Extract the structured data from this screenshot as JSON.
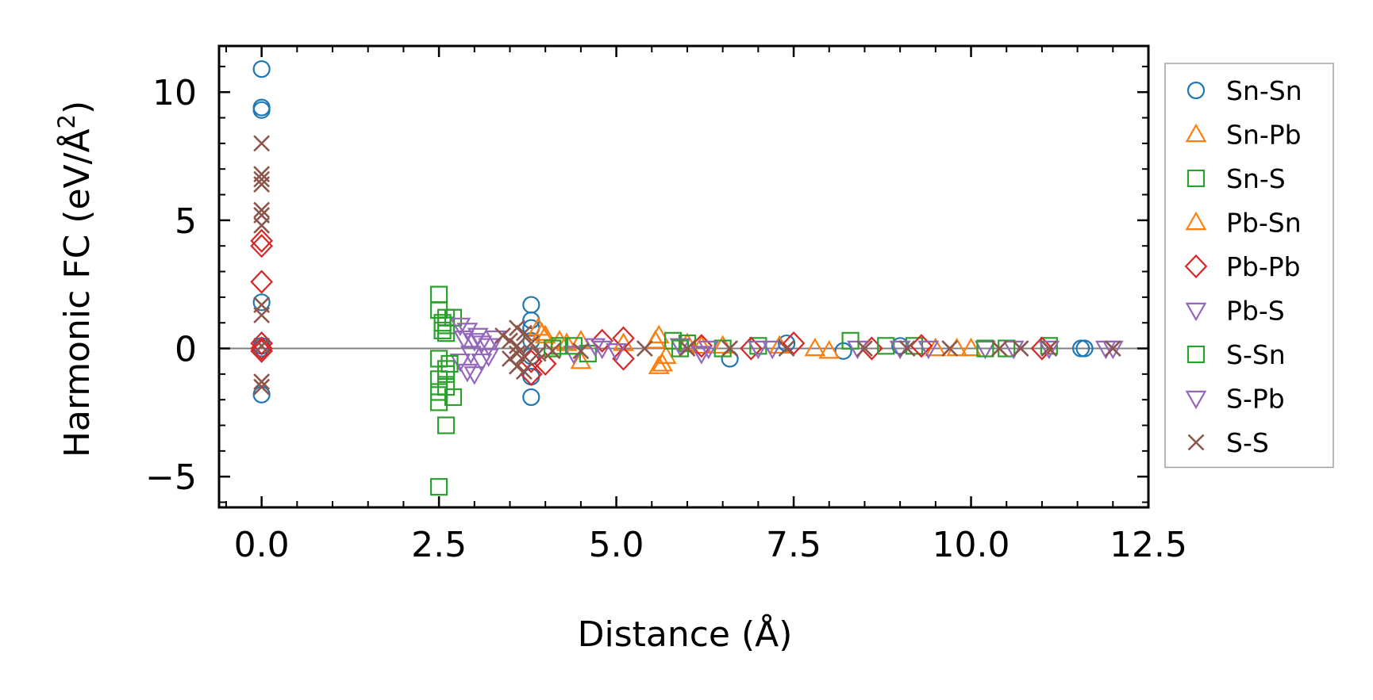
{
  "chart_data": {
    "type": "scatter",
    "xlabel": "Distance (Å)",
    "ylabel": "Harmonic FC (eV/Å²)",
    "ylabel_main": "Harmonic FC (eV/Å",
    "ylabel_sup": "2",
    "ylabel_close": ")",
    "xlim": [
      -0.6,
      12.5
    ],
    "ylim": [
      -6.2,
      11.8
    ],
    "xticks": [
      0.0,
      2.5,
      5.0,
      7.5,
      10.0,
      12.5
    ],
    "xtick_labels": [
      "0.0",
      "2.5",
      "5.0",
      "7.5",
      "10.0",
      "12.5"
    ],
    "yticks": [
      -5,
      0,
      5,
      10
    ],
    "ytick_labels": [
      "−5",
      "0",
      "5",
      "10"
    ],
    "zero_line": true,
    "grid": false,
    "legend_position": "right-outside",
    "series": [
      {
        "name": "Sn-Sn",
        "marker": "circle",
        "color": "#1f77b4",
        "points": [
          [
            0,
            10.9
          ],
          [
            0,
            9.4
          ],
          [
            0,
            9.3
          ],
          [
            0,
            1.8
          ],
          [
            0,
            0.1
          ],
          [
            0,
            -1.8
          ],
          [
            0,
            0
          ],
          [
            3.8,
            1.7
          ],
          [
            3.8,
            1.1
          ],
          [
            3.8,
            0.8
          ],
          [
            3.8,
            0.3
          ],
          [
            3.8,
            -0.3
          ],
          [
            3.8,
            -1.1
          ],
          [
            3.8,
            -1.9
          ],
          [
            6.6,
            -0.4
          ],
          [
            7.4,
            0.2
          ],
          [
            8.2,
            -0.1
          ],
          [
            9.0,
            0.1
          ],
          [
            11.55,
            0.0
          ],
          [
            11.6,
            0.0
          ]
        ]
      },
      {
        "name": "Sn-Pb",
        "marker": "triangle-up",
        "color": "#ff7f0e",
        "points": [
          [
            3.9,
            0.8
          ],
          [
            4.0,
            0.5
          ],
          [
            4.2,
            0.3
          ],
          [
            4.5,
            0.3
          ],
          [
            4.5,
            -0.5
          ],
          [
            5.1,
            0.2
          ],
          [
            5.6,
            0.5
          ],
          [
            5.6,
            -0.7
          ],
          [
            5.7,
            -0.3
          ],
          [
            6.0,
            0.2
          ],
          [
            6.5,
            0.1
          ],
          [
            7.3,
            0.1
          ],
          [
            8.0,
            -0.1
          ],
          [
            9.5,
            0.0
          ],
          [
            10.0,
            0.0
          ]
        ]
      },
      {
        "name": "Sn-S",
        "marker": "square",
        "color": "#2ca02c",
        "points": [
          [
            2.5,
            2.1
          ],
          [
            2.5,
            1.5
          ],
          [
            2.5,
            -0.4
          ],
          [
            2.5,
            -1.2
          ],
          [
            2.5,
            -1.7
          ],
          [
            2.5,
            -2.1
          ],
          [
            2.5,
            -5.4
          ],
          [
            2.6,
            1.2
          ],
          [
            2.6,
            0.9
          ],
          [
            2.6,
            0.6
          ],
          [
            2.6,
            -0.8
          ],
          [
            2.6,
            -1.5
          ],
          [
            2.6,
            -3.0
          ],
          [
            2.7,
            1.2
          ],
          [
            2.7,
            -1.9
          ],
          [
            4.2,
            0.1
          ],
          [
            4.6,
            -0.2
          ],
          [
            5.8,
            0.3
          ],
          [
            6.0,
            0.2
          ],
          [
            7.0,
            0.1
          ],
          [
            8.3,
            0.3
          ],
          [
            9.2,
            0.1
          ],
          [
            10.5,
            0.0
          ],
          [
            11.1,
            0.1
          ]
        ]
      },
      {
        "name": "Pb-Sn",
        "marker": "triangle-up",
        "color": "#ff7f0e",
        "points": [
          [
            3.95,
            0.6
          ],
          [
            4.3,
            0.2
          ],
          [
            5.55,
            0.3
          ],
          [
            5.65,
            -0.6
          ],
          [
            6.2,
            0.1
          ],
          [
            7.8,
            0.0
          ],
          [
            9.8,
            0.0
          ]
        ]
      },
      {
        "name": "Pb-Pb",
        "marker": "diamond",
        "color": "#d62728",
        "points": [
          [
            0,
            4.2
          ],
          [
            0,
            4.0
          ],
          [
            0,
            2.6
          ],
          [
            0,
            0.2
          ],
          [
            0,
            0.0
          ],
          [
            0,
            -0.1
          ],
          [
            3.8,
            -1.0
          ],
          [
            3.8,
            -0.5
          ],
          [
            4.0,
            -0.6
          ],
          [
            4.8,
            0.3
          ],
          [
            5.1,
            0.4
          ],
          [
            5.1,
            -0.4
          ],
          [
            6.2,
            0.1
          ],
          [
            6.9,
            0.0
          ],
          [
            7.5,
            0.2
          ],
          [
            8.6,
            0.0
          ],
          [
            9.3,
            0.1
          ],
          [
            11.0,
            0.0
          ]
        ]
      },
      {
        "name": "Pb-S",
        "marker": "triangle-down",
        "color": "#9467bd",
        "points": [
          [
            2.8,
            0.9
          ],
          [
            2.8,
            -0.5
          ],
          [
            2.9,
            0.7
          ],
          [
            2.9,
            -0.9
          ],
          [
            3.0,
            0.3
          ],
          [
            3.0,
            -1.0
          ],
          [
            3.1,
            0.2
          ],
          [
            3.1,
            -0.5
          ],
          [
            3.2,
            0.1
          ],
          [
            3.3,
            0.4
          ],
          [
            4.4,
            -0.2
          ],
          [
            4.8,
            0.0
          ],
          [
            5.0,
            -0.1
          ],
          [
            5.9,
            0.1
          ],
          [
            6.2,
            -0.2
          ],
          [
            7.2,
            0.0
          ],
          [
            8.4,
            0.0
          ],
          [
            9.4,
            0.0
          ],
          [
            10.2,
            0.0
          ],
          [
            11.1,
            0.0
          ],
          [
            12.0,
            0.0
          ]
        ]
      },
      {
        "name": "S-Sn",
        "marker": "square",
        "color": "#2ca02c",
        "points": [
          [
            2.55,
            1.0
          ],
          [
            2.55,
            0.7
          ],
          [
            2.6,
            -1.0
          ],
          [
            2.65,
            -0.6
          ],
          [
            4.1,
            0.0
          ],
          [
            4.4,
            0.1
          ],
          [
            5.9,
            0.0
          ],
          [
            6.5,
            0.0
          ],
          [
            8.8,
            0.1
          ],
          [
            10.2,
            0.0
          ]
        ]
      },
      {
        "name": "S-Pb",
        "marker": "triangle-down",
        "color": "#9467bd",
        "points": [
          [
            2.85,
            0.4
          ],
          [
            2.95,
            -0.2
          ],
          [
            3.05,
            0.5
          ],
          [
            3.2,
            -0.3
          ],
          [
            4.7,
            0.1
          ],
          [
            6.3,
            0.0
          ],
          [
            7.0,
            0.0
          ],
          [
            9.0,
            0.0
          ],
          [
            10.6,
            0.0
          ],
          [
            11.9,
            0.0
          ]
        ]
      },
      {
        "name": "S-S",
        "marker": "x",
        "color": "#8c564b",
        "points": [
          [
            0,
            8.0
          ],
          [
            0,
            6.8
          ],
          [
            0,
            6.6
          ],
          [
            0,
            6.4
          ],
          [
            0,
            5.4
          ],
          [
            0,
            5.2
          ],
          [
            0,
            4.8
          ],
          [
            0,
            1.7
          ],
          [
            0,
            1.3
          ],
          [
            0,
            0.1
          ],
          [
            0,
            -1.3
          ],
          [
            0,
            -1.5
          ],
          [
            3.4,
            0.5
          ],
          [
            3.5,
            0.3
          ],
          [
            3.5,
            -0.4
          ],
          [
            3.6,
            0.8
          ],
          [
            3.6,
            0.1
          ],
          [
            3.6,
            -0.2
          ],
          [
            3.6,
            -0.7
          ],
          [
            3.7,
            0.6
          ],
          [
            3.7,
            -0.3
          ],
          [
            3.7,
            -0.9
          ],
          [
            3.8,
            0.2
          ],
          [
            3.9,
            -0.2
          ],
          [
            4.1,
            -0.1
          ],
          [
            4.5,
            -0.1
          ],
          [
            5.4,
            0.0
          ],
          [
            6.0,
            0.0
          ],
          [
            6.6,
            0.0
          ],
          [
            7.4,
            0.0
          ],
          [
            8.5,
            0.0
          ],
          [
            9.1,
            0.0
          ],
          [
            9.7,
            0.0
          ],
          [
            10.4,
            0.0
          ],
          [
            10.7,
            0.0
          ],
          [
            11.1,
            0.0
          ],
          [
            12.0,
            0.0
          ]
        ]
      }
    ]
  }
}
